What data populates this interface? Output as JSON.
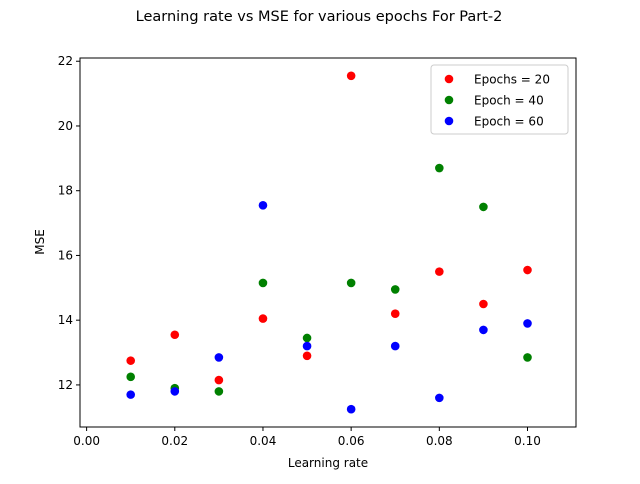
{
  "chart_data": {
    "type": "scatter",
    "title": "Learning rate vs MSE for various epochs For Part-2",
    "xlabel": "Learning rate",
    "ylabel": "MSE",
    "xlim": [
      -0.0015,
      0.111
    ],
    "ylim": [
      10.7,
      22.1
    ],
    "xticks": [
      0.0,
      0.02,
      0.04,
      0.06,
      0.08,
      0.1
    ],
    "xtick_labels": [
      "0.00",
      "0.02",
      "0.04",
      "0.06",
      "0.08",
      "0.10"
    ],
    "yticks": [
      12,
      14,
      16,
      18,
      20,
      22
    ],
    "ytick_labels": [
      "12",
      "14",
      "16",
      "18",
      "20",
      "22"
    ],
    "grid": false,
    "legend_position": "top-right",
    "x": [
      0.01,
      0.02,
      0.03,
      0.04,
      0.05,
      0.06,
      0.07,
      0.08,
      0.09,
      0.1
    ],
    "series": [
      {
        "name": "Epochs = 20",
        "color": "#ff0000",
        "values": [
          12.75,
          13.55,
          12.15,
          14.05,
          12.9,
          21.55,
          14.2,
          15.5,
          14.5,
          15.55
        ]
      },
      {
        "name": "Epoch = 40",
        "color": "#008000",
        "values": [
          12.25,
          11.9,
          11.8,
          15.15,
          13.45,
          15.15,
          14.95,
          18.7,
          17.5,
          12.85
        ]
      },
      {
        "name": "Epoch = 60",
        "color": "#0000ff",
        "values": [
          11.7,
          11.8,
          12.85,
          17.55,
          13.2,
          11.25,
          13.2,
          11.6,
          13.7,
          13.9
        ]
      }
    ]
  }
}
